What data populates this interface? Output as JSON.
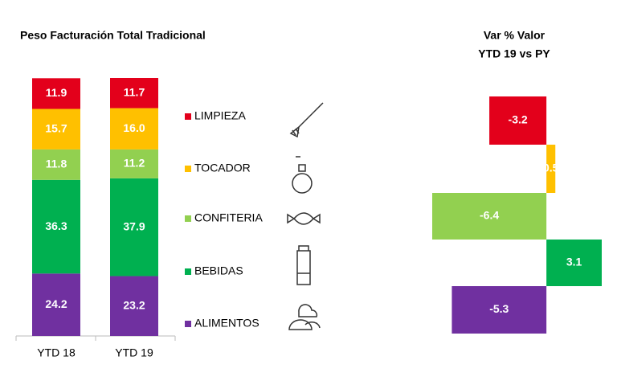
{
  "chart_data": [
    {
      "type": "stacked_bar",
      "title": "Peso Facturación Total Tradicional",
      "categories": [
        "YTD 18",
        "YTD 19"
      ],
      "ylim": [
        0,
        100
      ],
      "series": [
        {
          "name": "ALIMENTOS",
          "color": "#7030a0",
          "values": [
            24.2,
            23.2
          ],
          "value_labels": [
            "24.2",
            "23.2"
          ]
        },
        {
          "name": "BEBIDAS",
          "color": "#00b050",
          "values": [
            36.3,
            37.9
          ],
          "value_labels": [
            "36.3",
            "37.9"
          ]
        },
        {
          "name": "CONFITERIA",
          "color": "#92d050",
          "values": [
            11.8,
            11.2
          ],
          "value_labels": [
            "11.8",
            "11.2"
          ]
        },
        {
          "name": "TOCADOR",
          "color": "#ffc000",
          "values": [
            15.7,
            16.0
          ],
          "value_labels": [
            "15.7",
            "16.0"
          ]
        },
        {
          "name": "LIMPIEZA",
          "color": "#e3001b",
          "values": [
            11.9,
            11.7
          ],
          "value_labels": [
            "11.9",
            "11.7"
          ]
        }
      ]
    },
    {
      "type": "diverging_bar",
      "title": "Var % Valor",
      "subtitle": "YTD 19 vs PY",
      "values": [
        -3.2,
        0.5,
        -6.4,
        3.1,
        -5.3
      ],
      "colors": [
        "#e3001b",
        "#ffc000",
        "#92d050",
        "#00b050",
        "#7030a0"
      ],
      "xlim": [
        -6.5,
        3.3
      ]
    }
  ]
}
